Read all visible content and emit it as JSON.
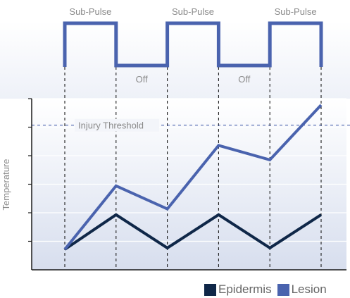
{
  "chart_data": {
    "type": "line",
    "title": "",
    "xlabel": "",
    "ylabel": "Temperature",
    "x": [
      0,
      1,
      2,
      3,
      4,
      5
    ],
    "series": [
      {
        "name": "Epidermis",
        "color": "#0f2748",
        "values": [
          1.0,
          2.2,
          1.05,
          2.2,
          1.05,
          2.2
        ]
      },
      {
        "name": "Lesion",
        "color": "#4a63ae",
        "values": [
          1.0,
          3.2,
          2.4,
          4.6,
          4.1,
          6.0
        ]
      }
    ],
    "threshold": {
      "label": "Injury Threshold",
      "value": 5.3
    },
    "pulse_labels": {
      "on": [
        "Sub-Pulse",
        "Sub-Pulse",
        "Sub-Pulse"
      ],
      "off": [
        "Off",
        "Off"
      ]
    },
    "pulse_color": "#4a63ae",
    "axis_color": "#1a1a1a",
    "y_ticks": 6,
    "grid": true,
    "legend_position": "bottom-right"
  }
}
